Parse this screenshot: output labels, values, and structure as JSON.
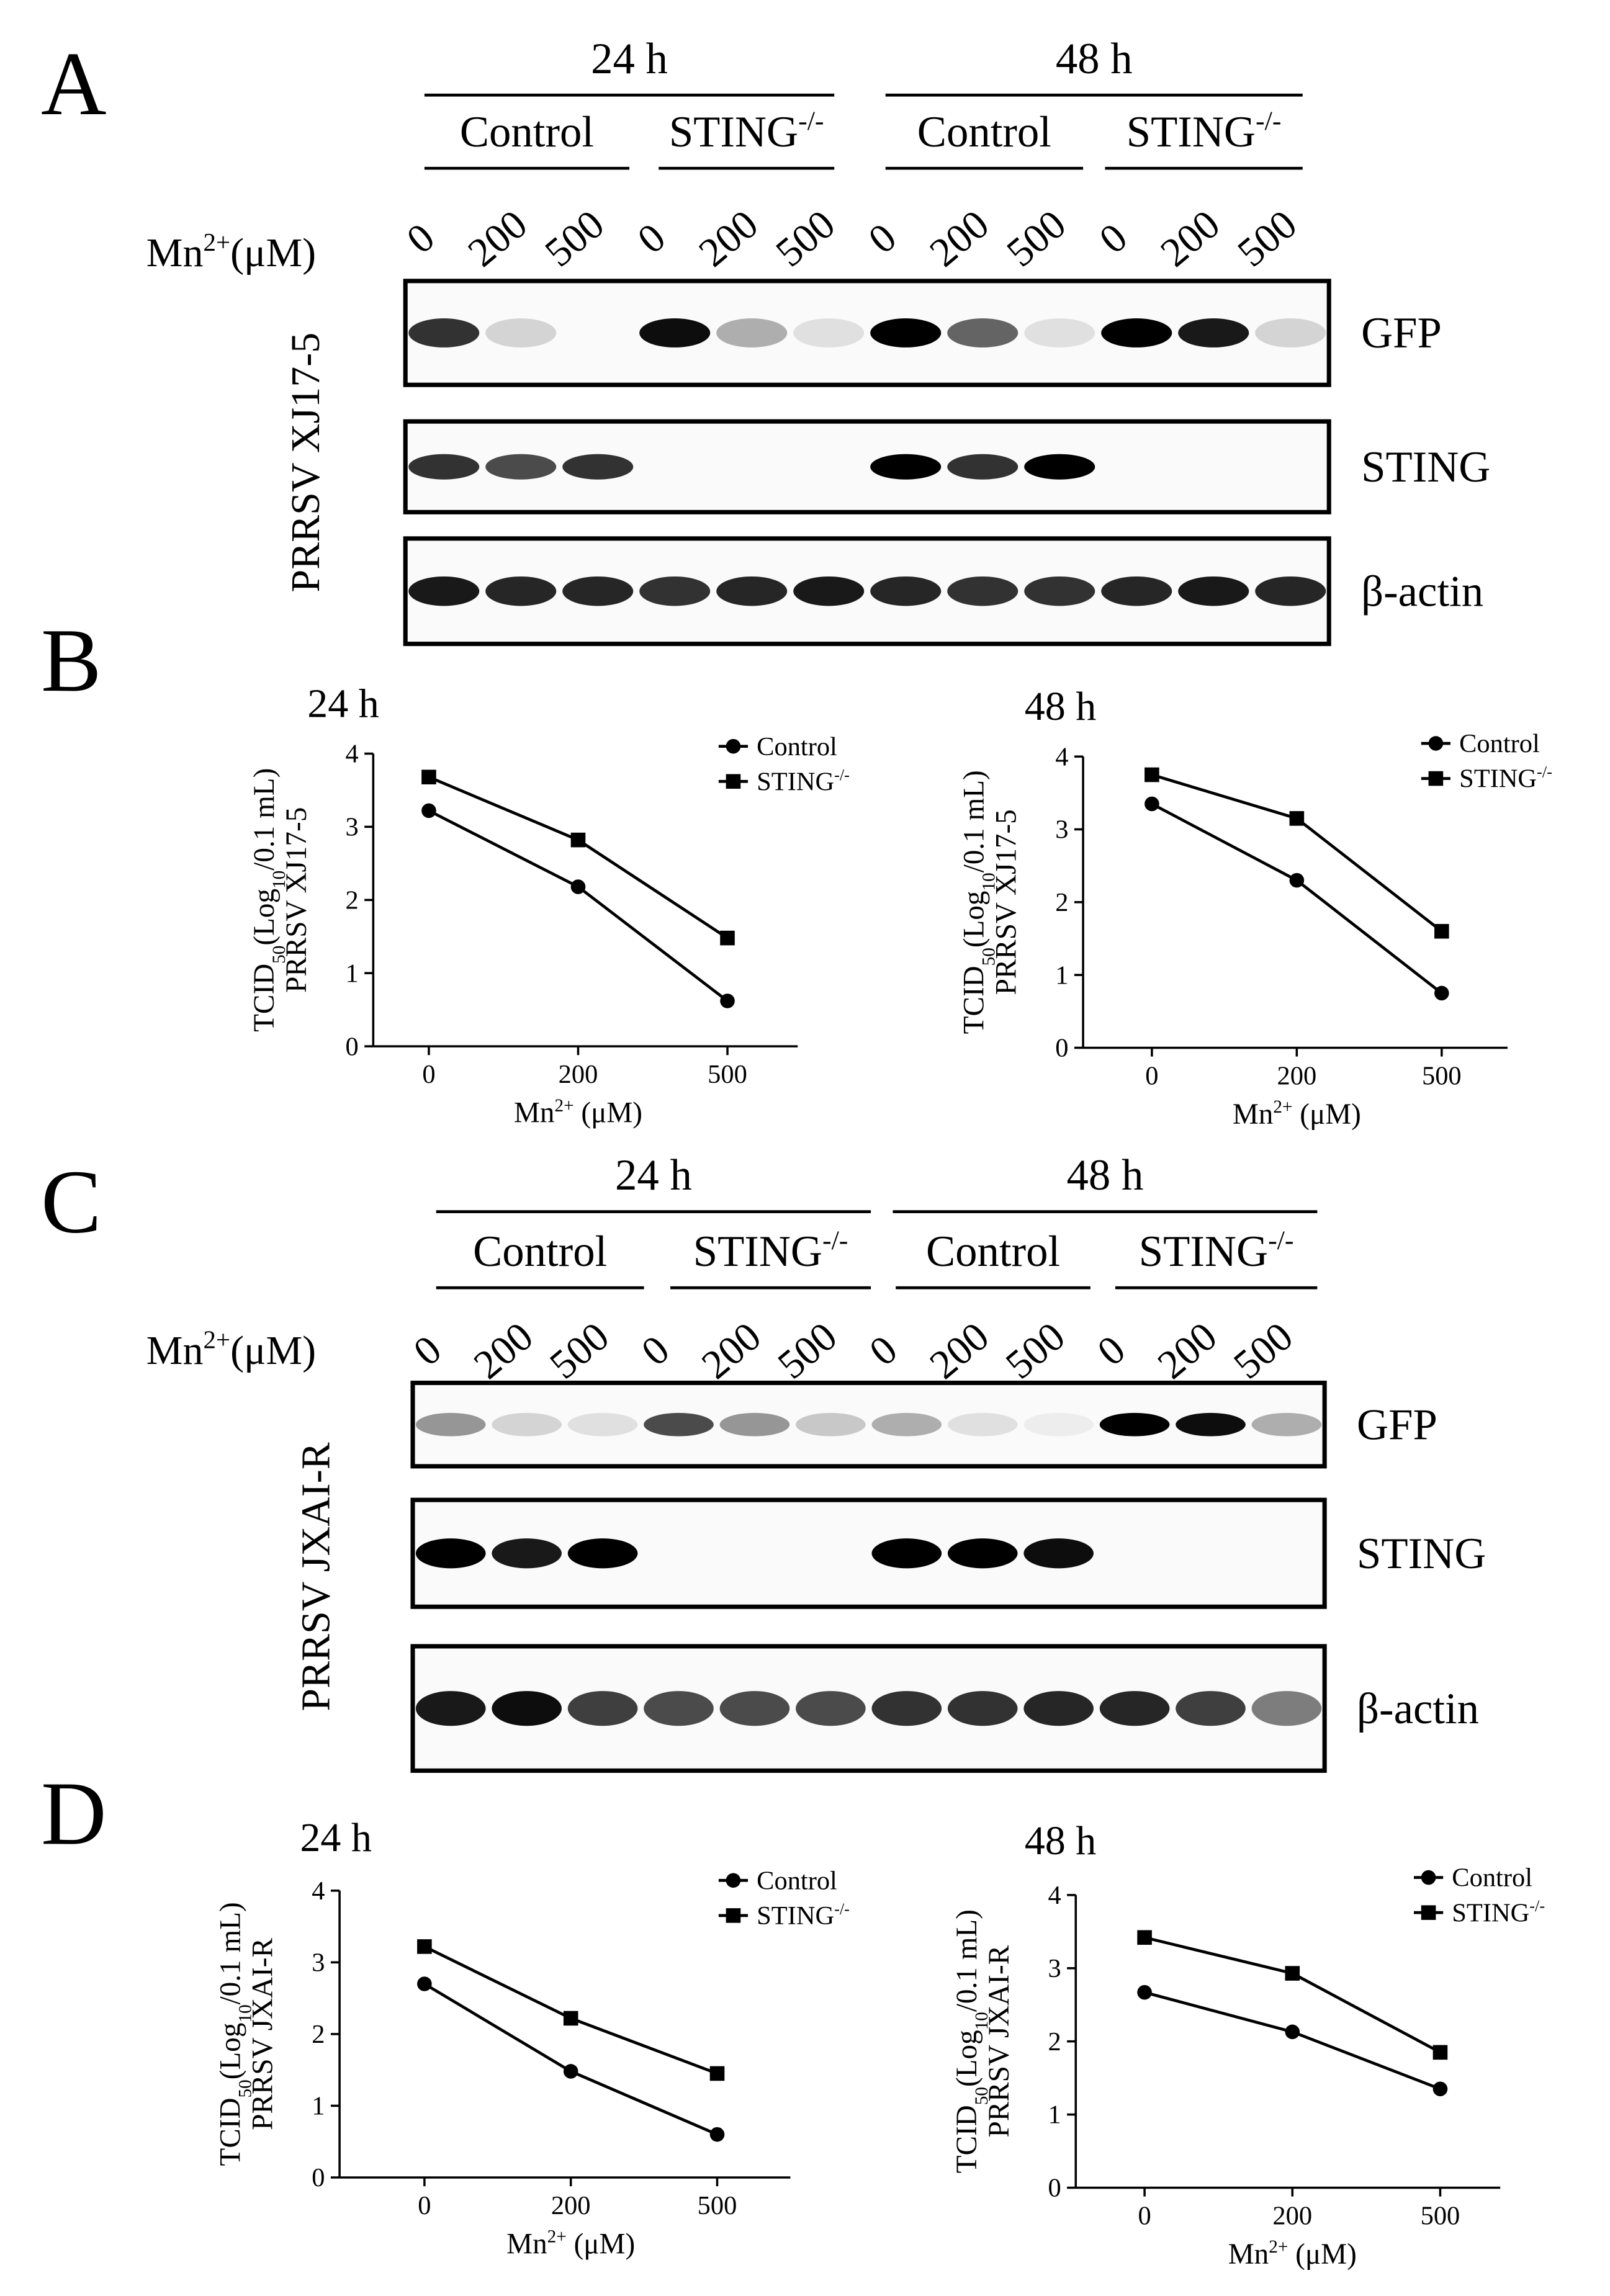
{
  "panel_labels": [
    "A",
    "B",
    "C",
    "D"
  ],
  "blots": [
    {
      "time_labels": [
        "24 h",
        "48 h"
      ],
      "group_labels": [
        "Control",
        {
          "text": "STING",
          "sup": "-/-"
        },
        "Control",
        {
          "text": "STING",
          "sup": "-/-"
        }
      ],
      "dose_title": {
        "text": "Mn",
        "sup": "2+",
        "text2": "(μM)"
      },
      "doses": [
        "0",
        "200",
        "500",
        "0",
        "200",
        "500",
        "0",
        "200",
        "500",
        "0",
        "200",
        "500"
      ],
      "virus": "PRRSV XJ17-5",
      "rows": [
        {
          "name": "GFP",
          "intensity": [
            0.8,
            0.15,
            0,
            0.95,
            0.3,
            0.1,
            1,
            0.6,
            0.1,
            1,
            0.9,
            0.15
          ]
        },
        {
          "name": "STING",
          "intensity": [
            0.8,
            0.7,
            0.8,
            0,
            0,
            0,
            1,
            0.8,
            1,
            0,
            0,
            0
          ]
        },
        {
          "name": "β-actin",
          "intensity": [
            0.9,
            0.85,
            0.85,
            0.8,
            0.85,
            0.9,
            0.85,
            0.8,
            0.8,
            0.85,
            0.9,
            0.85
          ]
        }
      ]
    },
    {
      "time_labels": [
        "24 h",
        "48 h"
      ],
      "group_labels": [
        "Control",
        {
          "text": "STING",
          "sup": "-/-"
        },
        "Control",
        {
          "text": "STING",
          "sup": "-/-"
        }
      ],
      "dose_title": {
        "text": "Mn",
        "sup": "2+",
        "text2": "(μM)"
      },
      "doses": [
        "0",
        "200",
        "500",
        "0",
        "200",
        "500",
        "0",
        "200",
        "500",
        "0",
        "200",
        "500"
      ],
      "virus": "PRRSV JXAI-R",
      "rows": [
        {
          "name": "GFP",
          "intensity": [
            0.4,
            0.15,
            0.1,
            0.7,
            0.4,
            0.2,
            0.3,
            0.1,
            0.05,
            1,
            0.95,
            0.3
          ]
        },
        {
          "name": "STING",
          "intensity": [
            1,
            0.9,
            1,
            0,
            0,
            0,
            1,
            1,
            0.95,
            0,
            0,
            0
          ]
        },
        {
          "name": "β-actin",
          "intensity": [
            0.9,
            0.95,
            0.75,
            0.7,
            0.7,
            0.7,
            0.8,
            0.8,
            0.85,
            0.85,
            0.75,
            0.5
          ]
        }
      ]
    }
  ],
  "chart_data": [
    {
      "type": "line",
      "title": "24 h",
      "categories": [
        "0",
        "200",
        "500"
      ],
      "xlabel": {
        "text": "Mn",
        "sup": "2+",
        "text2": " (μM)"
      },
      "ylabel": {
        "text": "TCID",
        "sub": "50",
        "text2": "(Log",
        "sub2": "10",
        "text3": "/0.1 mL)"
      },
      "ylabel2": "PRRSV XJ17-5",
      "ylim": [
        0,
        4
      ],
      "yticks": [
        0,
        1,
        2,
        3,
        4
      ],
      "grid": false,
      "series": [
        {
          "name": "Control",
          "color": "#000000",
          "marker": "circle",
          "values": [
            3.22,
            2.18,
            0.62
          ]
        },
        {
          "name": {
            "text": "STING",
            "sup": "-/-"
          },
          "color": "#000000",
          "marker": "square",
          "values": [
            3.68,
            2.82,
            1.48
          ]
        }
      ]
    },
    {
      "type": "line",
      "title": "48 h",
      "categories": [
        "0",
        "200",
        "500"
      ],
      "xlabel": {
        "text": "Mn",
        "sup": "2+",
        "text2": " (μM)"
      },
      "ylabel": {
        "text": "TCID",
        "sub": "50",
        "text2": "(Log",
        "sub2": "10",
        "text3": "/0.1 mL)"
      },
      "ylabel2": "PRRSV XJ17-5",
      "ylim": [
        0,
        4
      ],
      "yticks": [
        0,
        1,
        2,
        3,
        4
      ],
      "grid": false,
      "series": [
        {
          "name": "Control",
          "color": "#000000",
          "marker": "circle",
          "values": [
            3.35,
            2.3,
            0.75
          ]
        },
        {
          "name": {
            "text": "STING",
            "sup": "-/-"
          },
          "color": "#000000",
          "marker": "square",
          "values": [
            3.75,
            3.15,
            1.6
          ]
        }
      ]
    },
    {
      "type": "line",
      "title": "24 h",
      "categories": [
        "0",
        "200",
        "500"
      ],
      "xlabel": {
        "text": "Mn",
        "sup": "2+",
        "text2": " (μM)"
      },
      "ylabel": {
        "text": "TCID",
        "sub": "50",
        "text2": "(Log",
        "sub2": "10",
        "text3": "/0.1 mL)"
      },
      "ylabel2": "PRRSV JXAI-R",
      "ylim": [
        0,
        4
      ],
      "yticks": [
        0,
        1,
        2,
        3,
        4
      ],
      "grid": false,
      "series": [
        {
          "name": "Control",
          "color": "#000000",
          "marker": "circle",
          "values": [
            2.7,
            1.48,
            0.6
          ]
        },
        {
          "name": {
            "text": "STING",
            "sup": "-/-"
          },
          "color": "#000000",
          "marker": "square",
          "values": [
            3.22,
            2.22,
            1.45
          ]
        }
      ]
    },
    {
      "type": "line",
      "title": "48 h",
      "categories": [
        "0",
        "200",
        "500"
      ],
      "xlabel": {
        "text": "Mn",
        "sup": "2+",
        "text2": " (μM)"
      },
      "ylabel": {
        "text": "TCID",
        "sub": "50",
        "text2": "(Log",
        "sub2": "10",
        "text3": "/0.1 mL)"
      },
      "ylabel2": "PRRSV JXAI-R",
      "ylim": [
        0,
        4
      ],
      "yticks": [
        0,
        1,
        2,
        3,
        4
      ],
      "grid": false,
      "series": [
        {
          "name": "Control",
          "color": "#000000",
          "marker": "circle",
          "values": [
            2.67,
            2.13,
            1.35
          ]
        },
        {
          "name": {
            "text": "STING",
            "sup": "-/-"
          },
          "color": "#000000",
          "marker": "square",
          "values": [
            3.42,
            2.93,
            1.85
          ]
        }
      ]
    }
  ]
}
